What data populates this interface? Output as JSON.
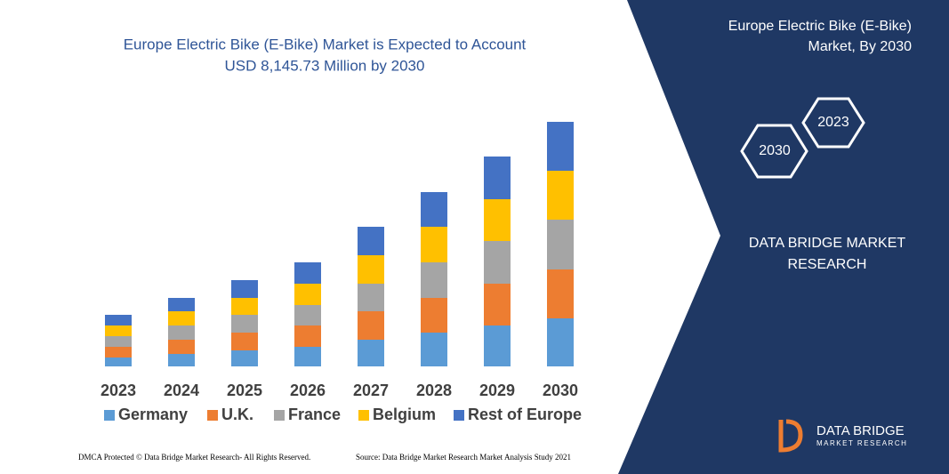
{
  "chart_data": {
    "type": "stacked_bar",
    "title": [
      "Europe Electric Bike (E-Bike) Market is Expected to Account",
      "USD 8,145.73 Million by 2030"
    ],
    "categories": [
      "2023",
      "2024",
      "2025",
      "2026",
      "2027",
      "2028",
      "2029",
      "2030"
    ],
    "series": [
      {
        "name": "Germany",
        "color": "#5b9bd5",
        "values": [
          10,
          14,
          18,
          22,
          30,
          38,
          46,
          54
        ]
      },
      {
        "name": "U.K.",
        "color": "#ed7d31",
        "values": [
          12,
          16,
          20,
          24,
          32,
          39,
          47,
          55
        ]
      },
      {
        "name": "France",
        "color": "#a5a5a5",
        "values": [
          12,
          16,
          20,
          23,
          31,
          40,
          48,
          56
        ]
      },
      {
        "name": "Belgium",
        "color": "#ffc000",
        "values": [
          12,
          16,
          19,
          24,
          32,
          40,
          47,
          55
        ]
      },
      {
        "name": "Rest of Europe",
        "color": "#4472c4",
        "values": [
          12,
          15,
          20,
          24,
          32,
          39,
          48,
          55
        ]
      }
    ]
  },
  "side_panel": {
    "title": [
      "Europe Electric Bike (E-Bike)",
      "Market, By 2030"
    ],
    "hexagons": [
      "2023",
      "2030"
    ],
    "brand": [
      "DATA BRIDGE MARKET",
      "RESEARCH"
    ]
  },
  "logo": {
    "name": "DATA BRIDGE",
    "tagline": "MARKET RESEARCH"
  },
  "footer": {
    "left": "DMCA Protected © Data Bridge Market Research- All Rights Reserved.",
    "right": "Source: Data Bridge Market Research Market Analysis Study 2021"
  }
}
